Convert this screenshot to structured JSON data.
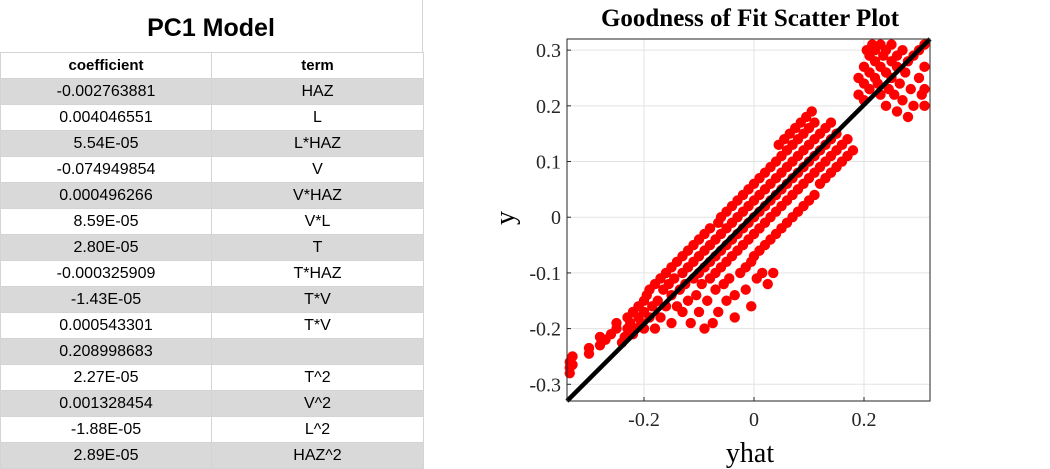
{
  "table": {
    "title": "PC1 Model",
    "headers": {
      "coefficient": "coefficient",
      "term": "term"
    },
    "rows": [
      {
        "coefficient": "-0.002763881",
        "term": "HAZ"
      },
      {
        "coefficient": "0.004046551",
        "term": "L"
      },
      {
        "coefficient": "5.54E-05",
        "term": "L*HAZ"
      },
      {
        "coefficient": "-0.074949854",
        "term": "V"
      },
      {
        "coefficient": "0.000496266",
        "term": "V*HAZ"
      },
      {
        "coefficient": "8.59E-05",
        "term": "V*L"
      },
      {
        "coefficient": "2.80E-05",
        "term": "T"
      },
      {
        "coefficient": "-0.000325909",
        "term": "T*HAZ"
      },
      {
        "coefficient": "-1.43E-05",
        "term": "T*V"
      },
      {
        "coefficient": "0.000543301",
        "term": "T*V"
      },
      {
        "coefficient": "0.208998683",
        "term": ""
      },
      {
        "coefficient": "2.27E-05",
        "term": "T^2"
      },
      {
        "coefficient": "0.001328454",
        "term": "V^2"
      },
      {
        "coefficient": "-1.88E-05",
        "term": "L^2"
      },
      {
        "coefficient": "2.89E-05",
        "term": "HAZ^2"
      }
    ]
  },
  "chart_data": {
    "type": "scatter",
    "title": "Goodness of Fit Scatter Plot",
    "xlabel": "yhat",
    "ylabel": "y",
    "xlim": [
      -0.34,
      0.32
    ],
    "ylim": [
      -0.33,
      0.32
    ],
    "xticks": [
      -0.2,
      0,
      0.2
    ],
    "xtick_labels": [
      "-0.2",
      "0",
      "0.2"
    ],
    "yticks": [
      -0.3,
      -0.2,
      -0.1,
      0,
      0.1,
      0.2,
      0.3
    ],
    "ytick_labels": [
      "-0.3",
      "-0.2",
      "-0.1",
      "0",
      "0.1",
      "0.2",
      "0.3"
    ],
    "grid": true,
    "point_color": "#ff0000",
    "line_color": "#000000",
    "fit_line": {
      "x": [
        -0.34,
        0.32
      ],
      "y": [
        -0.33,
        0.32
      ]
    },
    "points": [
      [
        -0.335,
        -0.26
      ],
      [
        -0.335,
        -0.27
      ],
      [
        -0.335,
        -0.28
      ],
      [
        -0.33,
        -0.25
      ],
      [
        -0.33,
        -0.265
      ],
      [
        -0.3,
        -0.235
      ],
      [
        -0.3,
        -0.245
      ],
      [
        -0.28,
        -0.215
      ],
      [
        -0.28,
        -0.23
      ],
      [
        -0.27,
        -0.22
      ],
      [
        -0.26,
        -0.21
      ],
      [
        -0.25,
        -0.2
      ],
      [
        -0.25,
        -0.19
      ],
      [
        -0.24,
        -0.225
      ],
      [
        -0.235,
        -0.215
      ],
      [
        -0.23,
        -0.2
      ],
      [
        -0.23,
        -0.18
      ],
      [
        -0.225,
        -0.19
      ],
      [
        -0.22,
        -0.17
      ],
      [
        -0.22,
        -0.21
      ],
      [
        -0.215,
        -0.2
      ],
      [
        -0.21,
        -0.18
      ],
      [
        -0.21,
        -0.16
      ],
      [
        -0.205,
        -0.19
      ],
      [
        -0.2,
        -0.2
      ],
      [
        -0.2,
        -0.15
      ],
      [
        -0.2,
        -0.17
      ],
      [
        -0.195,
        -0.14
      ],
      [
        -0.19,
        -0.18
      ],
      [
        -0.19,
        -0.13
      ],
      [
        -0.185,
        -0.16
      ],
      [
        -0.18,
        -0.12
      ],
      [
        -0.18,
        -0.2
      ],
      [
        -0.175,
        -0.15
      ],
      [
        -0.17,
        -0.11
      ],
      [
        -0.17,
        -0.18
      ],
      [
        -0.165,
        -0.13
      ],
      [
        -0.16,
        -0.1
      ],
      [
        -0.16,
        -0.16
      ],
      [
        -0.155,
        -0.12
      ],
      [
        -0.15,
        -0.14
      ],
      [
        -0.15,
        -0.09
      ],
      [
        -0.15,
        -0.19
      ],
      [
        -0.145,
        -0.11
      ],
      [
        -0.14,
        -0.08
      ],
      [
        -0.14,
        -0.16
      ],
      [
        -0.135,
        -0.13
      ],
      [
        -0.13,
        -0.1
      ],
      [
        -0.13,
        -0.07
      ],
      [
        -0.13,
        -0.17
      ],
      [
        -0.125,
        -0.12
      ],
      [
        -0.12,
        -0.09
      ],
      [
        -0.12,
        -0.06
      ],
      [
        -0.12,
        -0.15
      ],
      [
        -0.115,
        -0.19
      ],
      [
        -0.11,
        -0.11
      ],
      [
        -0.11,
        -0.08
      ],
      [
        -0.11,
        -0.05
      ],
      [
        -0.105,
        -0.14
      ],
      [
        -0.1,
        -0.1
      ],
      [
        -0.1,
        -0.07
      ],
      [
        -0.1,
        -0.04
      ],
      [
        -0.1,
        -0.17
      ],
      [
        -0.095,
        -0.12
      ],
      [
        -0.09,
        -0.09
      ],
      [
        -0.09,
        -0.06
      ],
      [
        -0.09,
        -0.03
      ],
      [
        -0.09,
        -0.2
      ],
      [
        -0.085,
        -0.15
      ],
      [
        -0.08,
        -0.08
      ],
      [
        -0.08,
        -0.05
      ],
      [
        -0.08,
        -0.11
      ],
      [
        -0.08,
        -0.02
      ],
      [
        -0.075,
        -0.19
      ],
      [
        -0.07,
        -0.07
      ],
      [
        -0.07,
        -0.04
      ],
      [
        -0.07,
        -0.1
      ],
      [
        -0.07,
        -0.13
      ],
      [
        -0.065,
        -0.01
      ],
      [
        -0.065,
        -0.17
      ],
      [
        -0.06,
        -0.06
      ],
      [
        -0.06,
        -0.03
      ],
      [
        -0.06,
        -0.09
      ],
      [
        -0.06,
        0.0
      ],
      [
        -0.055,
        -0.12
      ],
      [
        -0.05,
        -0.05
      ],
      [
        -0.05,
        -0.02
      ],
      [
        -0.05,
        -0.08
      ],
      [
        -0.05,
        0.01
      ],
      [
        -0.05,
        -0.15
      ],
      [
        -0.045,
        -0.11
      ],
      [
        -0.04,
        -0.04
      ],
      [
        -0.04,
        -0.01
      ],
      [
        -0.04,
        -0.07
      ],
      [
        -0.04,
        0.02
      ],
      [
        -0.035,
        -0.14
      ],
      [
        -0.035,
        -0.18
      ],
      [
        -0.03,
        -0.03
      ],
      [
        -0.03,
        0.0
      ],
      [
        -0.03,
        -0.06
      ],
      [
        -0.03,
        0.03
      ],
      [
        -0.025,
        -0.1
      ],
      [
        -0.02,
        -0.02
      ],
      [
        -0.02,
        0.01
      ],
      [
        -0.02,
        -0.05
      ],
      [
        -0.02,
        0.04
      ],
      [
        -0.015,
        -0.09
      ],
      [
        -0.015,
        -0.13
      ],
      [
        -0.01,
        -0.01
      ],
      [
        -0.01,
        0.02
      ],
      [
        -0.01,
        -0.04
      ],
      [
        -0.01,
        0.05
      ],
      [
        -0.005,
        -0.08
      ],
      [
        -0.005,
        -0.16
      ],
      [
        0.0,
        0.0
      ],
      [
        0.0,
        0.03
      ],
      [
        0.0,
        -0.03
      ],
      [
        0.0,
        0.06
      ],
      [
        0.0,
        -0.07
      ],
      [
        0.005,
        -0.11
      ],
      [
        0.01,
        0.01
      ],
      [
        0.01,
        0.04
      ],
      [
        0.01,
        -0.02
      ],
      [
        0.01,
        0.07
      ],
      [
        0.01,
        -0.06
      ],
      [
        0.015,
        -0.1
      ],
      [
        0.02,
        0.02
      ],
      [
        0.02,
        0.05
      ],
      [
        0.02,
        -0.01
      ],
      [
        0.02,
        0.08
      ],
      [
        0.02,
        -0.05
      ],
      [
        0.025,
        -0.12
      ],
      [
        0.03,
        0.03
      ],
      [
        0.03,
        0.06
      ],
      [
        0.03,
        0.0
      ],
      [
        0.03,
        0.09
      ],
      [
        0.03,
        -0.04
      ],
      [
        0.035,
        -0.1
      ],
      [
        0.04,
        0.04
      ],
      [
        0.04,
        0.07
      ],
      [
        0.04,
        0.01
      ],
      [
        0.04,
        0.1
      ],
      [
        0.04,
        -0.03
      ],
      [
        0.045,
        0.13
      ],
      [
        0.05,
        0.05
      ],
      [
        0.05,
        0.08
      ],
      [
        0.05,
        0.02
      ],
      [
        0.05,
        0.11
      ],
      [
        0.05,
        -0.02
      ],
      [
        0.055,
        0.14
      ],
      [
        0.06,
        0.06
      ],
      [
        0.06,
        0.09
      ],
      [
        0.06,
        0.03
      ],
      [
        0.06,
        0.12
      ],
      [
        0.06,
        -0.01
      ],
      [
        0.065,
        0.15
      ],
      [
        0.07,
        0.07
      ],
      [
        0.07,
        0.1
      ],
      [
        0.07,
        0.04
      ],
      [
        0.07,
        0.13
      ],
      [
        0.07,
        0.0
      ],
      [
        0.075,
        0.16
      ],
      [
        0.08,
        0.08
      ],
      [
        0.08,
        0.11
      ],
      [
        0.08,
        0.05
      ],
      [
        0.08,
        0.14
      ],
      [
        0.08,
        0.01
      ],
      [
        0.085,
        0.17
      ],
      [
        0.09,
        0.09
      ],
      [
        0.09,
        0.12
      ],
      [
        0.09,
        0.06
      ],
      [
        0.09,
        0.15
      ],
      [
        0.09,
        0.02
      ],
      [
        0.095,
        0.18
      ],
      [
        0.1,
        0.1
      ],
      [
        0.1,
        0.13
      ],
      [
        0.1,
        0.07
      ],
      [
        0.1,
        0.16
      ],
      [
        0.1,
        0.03
      ],
      [
        0.105,
        0.19
      ],
      [
        0.11,
        0.11
      ],
      [
        0.11,
        0.14
      ],
      [
        0.11,
        0.08
      ],
      [
        0.11,
        0.17
      ],
      [
        0.11,
        0.04
      ],
      [
        0.12,
        0.12
      ],
      [
        0.12,
        0.15
      ],
      [
        0.12,
        0.09
      ],
      [
        0.12,
        0.06
      ],
      [
        0.13,
        0.13
      ],
      [
        0.13,
        0.16
      ],
      [
        0.13,
        0.1
      ],
      [
        0.13,
        0.07
      ],
      [
        0.14,
        0.14
      ],
      [
        0.14,
        0.11
      ],
      [
        0.14,
        0.08
      ],
      [
        0.14,
        0.17
      ],
      [
        0.15,
        0.12
      ],
      [
        0.15,
        0.09
      ],
      [
        0.15,
        0.15
      ],
      [
        0.16,
        0.13
      ],
      [
        0.16,
        0.1
      ],
      [
        0.17,
        0.14
      ],
      [
        0.17,
        0.11
      ],
      [
        0.18,
        0.12
      ],
      [
        0.19,
        0.22
      ],
      [
        0.19,
        0.25
      ],
      [
        0.2,
        0.24
      ],
      [
        0.2,
        0.27
      ],
      [
        0.2,
        0.21
      ],
      [
        0.205,
        0.3
      ],
      [
        0.21,
        0.26
      ],
      [
        0.21,
        0.29
      ],
      [
        0.21,
        0.23
      ],
      [
        0.215,
        0.31
      ],
      [
        0.22,
        0.25
      ],
      [
        0.22,
        0.28
      ],
      [
        0.22,
        0.3
      ],
      [
        0.225,
        0.24
      ],
      [
        0.23,
        0.27
      ],
      [
        0.23,
        0.31
      ],
      [
        0.23,
        0.22
      ],
      [
        0.235,
        0.29
      ],
      [
        0.24,
        0.26
      ],
      [
        0.24,
        0.3
      ],
      [
        0.24,
        0.2
      ],
      [
        0.245,
        0.23
      ],
      [
        0.25,
        0.28
      ],
      [
        0.25,
        0.31
      ],
      [
        0.25,
        0.25
      ],
      [
        0.255,
        0.22
      ],
      [
        0.26,
        0.29
      ],
      [
        0.26,
        0.27
      ],
      [
        0.26,
        0.19
      ],
      [
        0.265,
        0.24
      ],
      [
        0.27,
        0.3
      ],
      [
        0.27,
        0.21
      ],
      [
        0.275,
        0.26
      ],
      [
        0.28,
        0.28
      ],
      [
        0.28,
        0.18
      ],
      [
        0.285,
        0.23
      ],
      [
        0.29,
        0.29
      ],
      [
        0.29,
        0.2
      ],
      [
        0.3,
        0.3
      ],
      [
        0.3,
        0.25
      ],
      [
        0.305,
        0.22
      ],
      [
        0.31,
        0.31
      ],
      [
        0.31,
        0.27
      ],
      [
        0.31,
        0.2
      ],
      [
        0.31,
        0.23
      ]
    ]
  }
}
